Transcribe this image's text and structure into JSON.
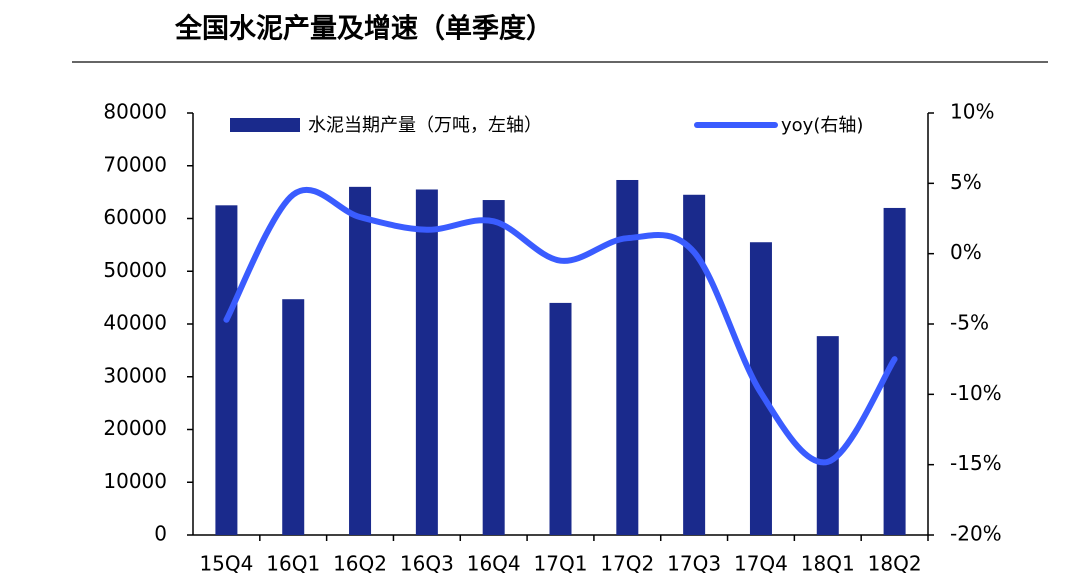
{
  "chart_data": {
    "type": "bar",
    "title": "全国水泥产量及增速（单季度）",
    "categories": [
      "15Q4",
      "16Q1",
      "16Q2",
      "16Q3",
      "16Q4",
      "17Q1",
      "17Q2",
      "17Q3",
      "17Q4",
      "18Q1",
      "18Q2"
    ],
    "series": [
      {
        "name": "水泥当期产量（万吨，左轴）",
        "type": "bar",
        "color": "#1a2a8c",
        "values": [
          62500,
          44700,
          66000,
          65500,
          63500,
          44000,
          67300,
          64500,
          55500,
          37700,
          62000
        ]
      },
      {
        "name": "yoy(右轴)",
        "type": "line",
        "axis": "y2",
        "color": "#3a5cff",
        "values": [
          -4.7,
          4.2,
          2.6,
          1.7,
          2.3,
          -0.5,
          1.1,
          0.1,
          -9.9,
          -14.8,
          -7.5
        ]
      }
    ],
    "ylim": [
      0,
      80000
    ],
    "yticks": [
      0,
      10000,
      20000,
      30000,
      40000,
      50000,
      60000,
      70000,
      80000
    ],
    "y2lim": [
      -20,
      10
    ],
    "y2ticks": [
      {
        "value": -20,
        "label": "-20%"
      },
      {
        "value": -15,
        "label": "-15%"
      },
      {
        "value": -10,
        "label": "-10%"
      },
      {
        "value": -5,
        "label": "-5%"
      },
      {
        "value": 0,
        "label": "0%"
      },
      {
        "value": 5,
        "label": "5%"
      },
      {
        "value": 10,
        "label": "10%"
      }
    ],
    "grid": false
  }
}
